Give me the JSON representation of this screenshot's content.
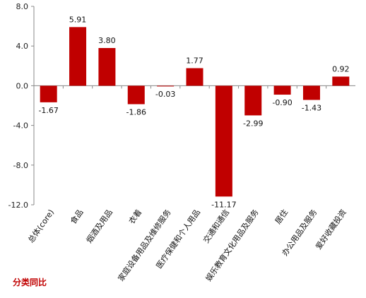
{
  "chart_data": {
    "type": "bar",
    "categories": [
      "总体(core)",
      "食品",
      "烟酒及用品",
      "衣着",
      "家庭设备用品及维修服务",
      "医疗保健和个人用品",
      "交通和通信",
      "娱乐教育文化用品及服务",
      "居住",
      "办公用品及服务",
      "爱好收藏投资"
    ],
    "values": [
      -1.67,
      5.91,
      3.8,
      -1.86,
      -0.03,
      1.77,
      -11.17,
      -2.99,
      -0.9,
      -1.43,
      0.92
    ],
    "value_labels": [
      "-1.67",
      "5.91",
      "3.80",
      "-1.86",
      "-0.03",
      "1.77",
      "-11.17",
      "-2.99",
      "-0.90",
      "-1.43",
      "0.92"
    ],
    "ylim": [
      -12.0,
      8.0
    ],
    "y_ticks": [
      8.0,
      4.0,
      0.0,
      -4.0,
      -8.0,
      -12.0
    ],
    "y_tick_labels": [
      "8.0",
      "4.0",
      "0.0",
      "-4.0",
      "-8.0",
      "-12.0"
    ],
    "grid": false,
    "legend": {
      "label": "分类同比",
      "position": "bottom-left"
    },
    "colors": {
      "bar": "#c00000",
      "legend_text": "#c00000",
      "axis": "#888888"
    }
  }
}
